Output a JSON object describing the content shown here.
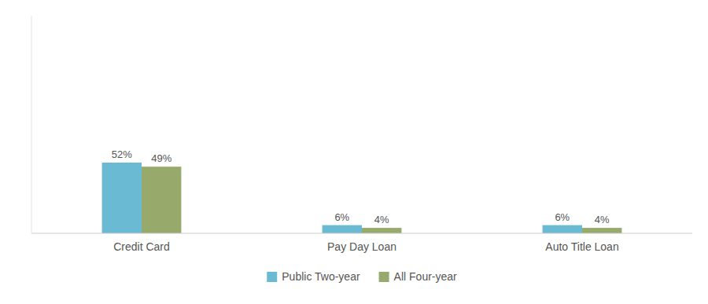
{
  "chart_data": {
    "type": "bar",
    "categories": [
      "Credit Card",
      "Pay Day Loan",
      "Auto Title Loan"
    ],
    "series": [
      {
        "name": "Public Two-year",
        "color": "#6BBAD4",
        "values": [
          52,
          6,
          6
        ],
        "value_labels": [
          "52%",
          "6%",
          "6%"
        ]
      },
      {
        "name": "All Four-year",
        "color": "#97AA6B",
        "values": [
          49,
          4,
          4
        ],
        "value_labels": [
          "49%",
          "4%",
          "4%"
        ]
      }
    ],
    "ylim": [
      0,
      160
    ],
    "grid": false,
    "legend": "bottom",
    "data_labels": true,
    "tick_labels": "x"
  }
}
